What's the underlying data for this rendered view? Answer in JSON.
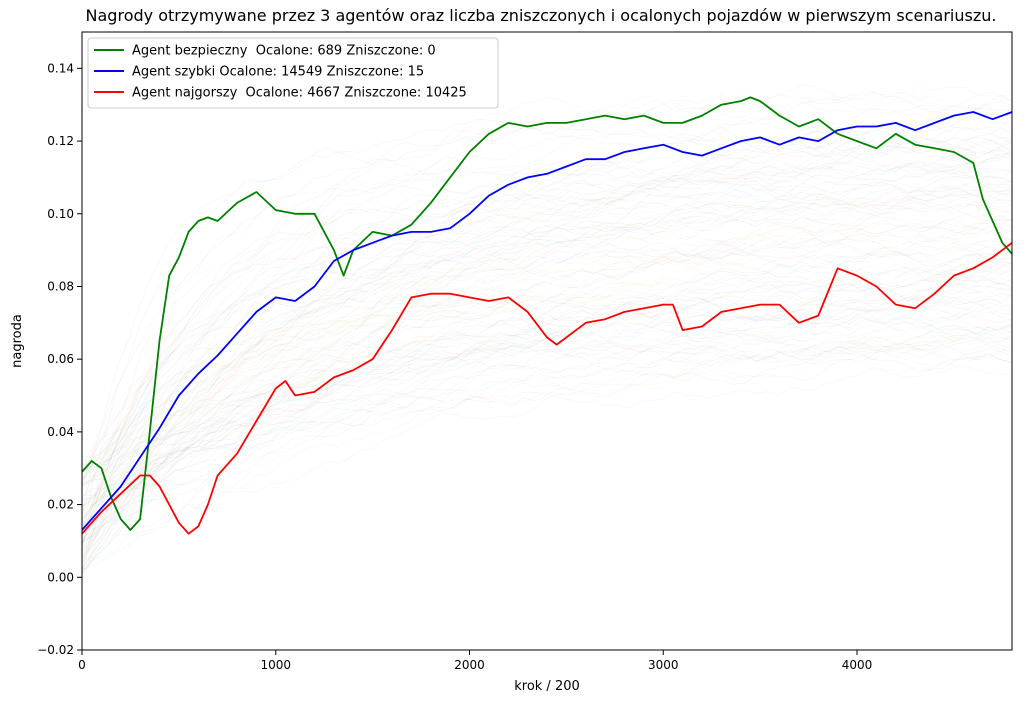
{
  "chart_data": {
    "type": "line",
    "title": "Nagrody otrzymywane przez 3 agentów oraz liczba zniszczonych i ocalonych pojazdów w pierwszym scenariuszu.",
    "xlabel": "krok / 200",
    "ylabel": "nagroda",
    "xlim": [
      0,
      4800
    ],
    "ylim": [
      -0.02,
      0.15
    ],
    "x_ticks": [
      0,
      1000,
      2000,
      3000,
      4000
    ],
    "x_tick_labels": [
      "0",
      "1000",
      "2000",
      "3000",
      "4000"
    ],
    "y_ticks": [
      -0.02,
      0.0,
      0.02,
      0.04,
      0.06,
      0.08,
      0.1,
      0.12,
      0.14
    ],
    "y_tick_labels": [
      "−0.02",
      "0.00",
      "0.02",
      "0.04",
      "0.06",
      "0.08",
      "0.10",
      "0.12",
      "0.14"
    ],
    "grid": false,
    "legend_position": "top-left",
    "background_runs": "many faint translucent lines (all individual runs)",
    "series": [
      {
        "name": "Agent bezpieczny  Ocalone: 689 Zniszczone: 0",
        "color": "#008000",
        "x": [
          0,
          50,
          100,
          150,
          200,
          250,
          300,
          350,
          400,
          450,
          500,
          550,
          600,
          650,
          700,
          800,
          900,
          1000,
          1100,
          1200,
          1300,
          1350,
          1400,
          1500,
          1600,
          1700,
          1800,
          1900,
          2000,
          2100,
          2200,
          2300,
          2400,
          2500,
          2600,
          2700,
          2800,
          2900,
          3000,
          3100,
          3200,
          3300,
          3400,
          3450,
          3500,
          3600,
          3700,
          3800,
          3900,
          4000,
          4100,
          4200,
          4300,
          4400,
          4500,
          4600,
          4650,
          4700,
          4750,
          4800
        ],
        "values": [
          0.029,
          0.032,
          0.03,
          0.022,
          0.016,
          0.013,
          0.016,
          0.04,
          0.065,
          0.083,
          0.088,
          0.095,
          0.098,
          0.099,
          0.098,
          0.103,
          0.106,
          0.101,
          0.1,
          0.1,
          0.09,
          0.083,
          0.09,
          0.095,
          0.094,
          0.097,
          0.103,
          0.11,
          0.117,
          0.122,
          0.125,
          0.124,
          0.125,
          0.125,
          0.126,
          0.127,
          0.126,
          0.127,
          0.125,
          0.125,
          0.127,
          0.13,
          0.131,
          0.132,
          0.131,
          0.127,
          0.124,
          0.126,
          0.122,
          0.12,
          0.118,
          0.122,
          0.119,
          0.118,
          0.117,
          0.114,
          0.104,
          0.098,
          0.092,
          0.089
        ]
      },
      {
        "name": "Agent szybki Ocalone: 14549 Zniszczone: 15",
        "color": "#0000ff",
        "x": [
          0,
          100,
          200,
          300,
          400,
          500,
          600,
          700,
          800,
          900,
          1000,
          1100,
          1200,
          1300,
          1400,
          1500,
          1600,
          1700,
          1800,
          1900,
          2000,
          2100,
          2200,
          2300,
          2400,
          2500,
          2600,
          2700,
          2800,
          2900,
          3000,
          3100,
          3200,
          3300,
          3400,
          3500,
          3600,
          3700,
          3800,
          3900,
          4000,
          4100,
          4200,
          4300,
          4400,
          4500,
          4600,
          4700,
          4800
        ],
        "values": [
          0.013,
          0.019,
          0.025,
          0.033,
          0.041,
          0.05,
          0.056,
          0.061,
          0.067,
          0.073,
          0.077,
          0.076,
          0.08,
          0.087,
          0.09,
          0.092,
          0.094,
          0.095,
          0.095,
          0.096,
          0.1,
          0.105,
          0.108,
          0.11,
          0.111,
          0.113,
          0.115,
          0.115,
          0.117,
          0.118,
          0.119,
          0.117,
          0.116,
          0.118,
          0.12,
          0.121,
          0.119,
          0.121,
          0.12,
          0.123,
          0.124,
          0.124,
          0.125,
          0.123,
          0.125,
          0.127,
          0.128,
          0.126,
          0.128
        ]
      },
      {
        "name": "Agent najgorszy  Ocalone: 4667 Zniszczone: 10425",
        "color": "#ff0000",
        "x": [
          0,
          100,
          200,
          300,
          350,
          400,
          450,
          500,
          550,
          600,
          650,
          700,
          800,
          900,
          1000,
          1050,
          1100,
          1200,
          1300,
          1400,
          1500,
          1600,
          1700,
          1800,
          1900,
          2000,
          2100,
          2200,
          2300,
          2400,
          2450,
          2500,
          2600,
          2700,
          2800,
          2900,
          3000,
          3050,
          3100,
          3200,
          3300,
          3400,
          3500,
          3600,
          3700,
          3800,
          3900,
          4000,
          4100,
          4200,
          4300,
          4400,
          4500,
          4600,
          4700,
          4800
        ],
        "values": [
          0.012,
          0.018,
          0.023,
          0.028,
          0.028,
          0.025,
          0.02,
          0.015,
          0.012,
          0.014,
          0.02,
          0.028,
          0.034,
          0.043,
          0.052,
          0.054,
          0.05,
          0.051,
          0.055,
          0.057,
          0.06,
          0.068,
          0.077,
          0.078,
          0.078,
          0.077,
          0.076,
          0.077,
          0.073,
          0.066,
          0.064,
          0.066,
          0.07,
          0.071,
          0.073,
          0.074,
          0.075,
          0.075,
          0.068,
          0.069,
          0.073,
          0.074,
          0.075,
          0.075,
          0.07,
          0.072,
          0.085,
          0.083,
          0.08,
          0.075,
          0.074,
          0.078,
          0.083,
          0.085,
          0.088,
          0.092
        ]
      }
    ]
  }
}
